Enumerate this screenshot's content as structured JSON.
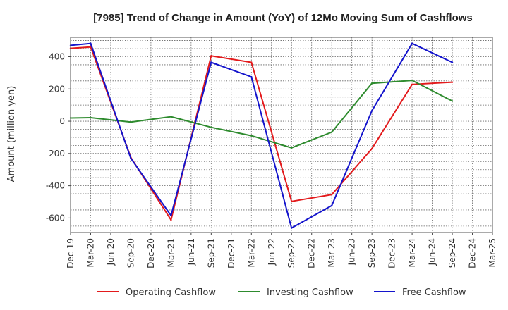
{
  "chart_data": {
    "type": "line",
    "title": "[7985]  Trend of Change in Amount (YoY) of 12Mo Moving Sum of Cashflows",
    "xlabel": "",
    "ylabel": "Amount (million yen)",
    "ylim": [
      -690,
      520
    ],
    "yticks": [
      -600,
      -400,
      -200,
      0,
      200,
      400
    ],
    "ytick_labels": [
      "-600",
      "-400",
      "-200",
      "0",
      "200",
      "400"
    ],
    "categories": [
      "Dec-19",
      "Mar-20",
      "Jun-20",
      "Sep-20",
      "Dec-20",
      "Mar-21",
      "Jun-21",
      "Sep-21",
      "Dec-21",
      "Mar-22",
      "Jun-22",
      "Sep-22",
      "Dec-22",
      "Mar-23",
      "Jun-23",
      "Sep-23",
      "Dec-23",
      "Mar-24",
      "Jun-24",
      "Sep-24",
      "Dec-24",
      "Mar-25"
    ],
    "grid": true,
    "legend_position": "bottom",
    "series": [
      {
        "name": "Operating Cashflow",
        "color": "#e31a1c",
        "values": [
          452,
          460,
          null,
          -225,
          null,
          -612,
          null,
          405,
          null,
          365,
          null,
          -497,
          null,
          -455,
          null,
          -170,
          null,
          228,
          null,
          242,
          null,
          null
        ]
      },
      {
        "name": "Investing Cashflow",
        "color": "#2e8b2e",
        "values": [
          20,
          22,
          null,
          -5,
          null,
          28,
          null,
          -38,
          null,
          -90,
          null,
          -165,
          null,
          -68,
          null,
          235,
          null,
          253,
          null,
          125,
          null,
          null
        ]
      },
      {
        "name": "Free Cashflow",
        "color": "#1414cc",
        "values": [
          470,
          482,
          null,
          -230,
          null,
          -585,
          null,
          365,
          null,
          275,
          null,
          -662,
          null,
          -523,
          null,
          65,
          null,
          482,
          null,
          365,
          null,
          null
        ]
      }
    ]
  }
}
